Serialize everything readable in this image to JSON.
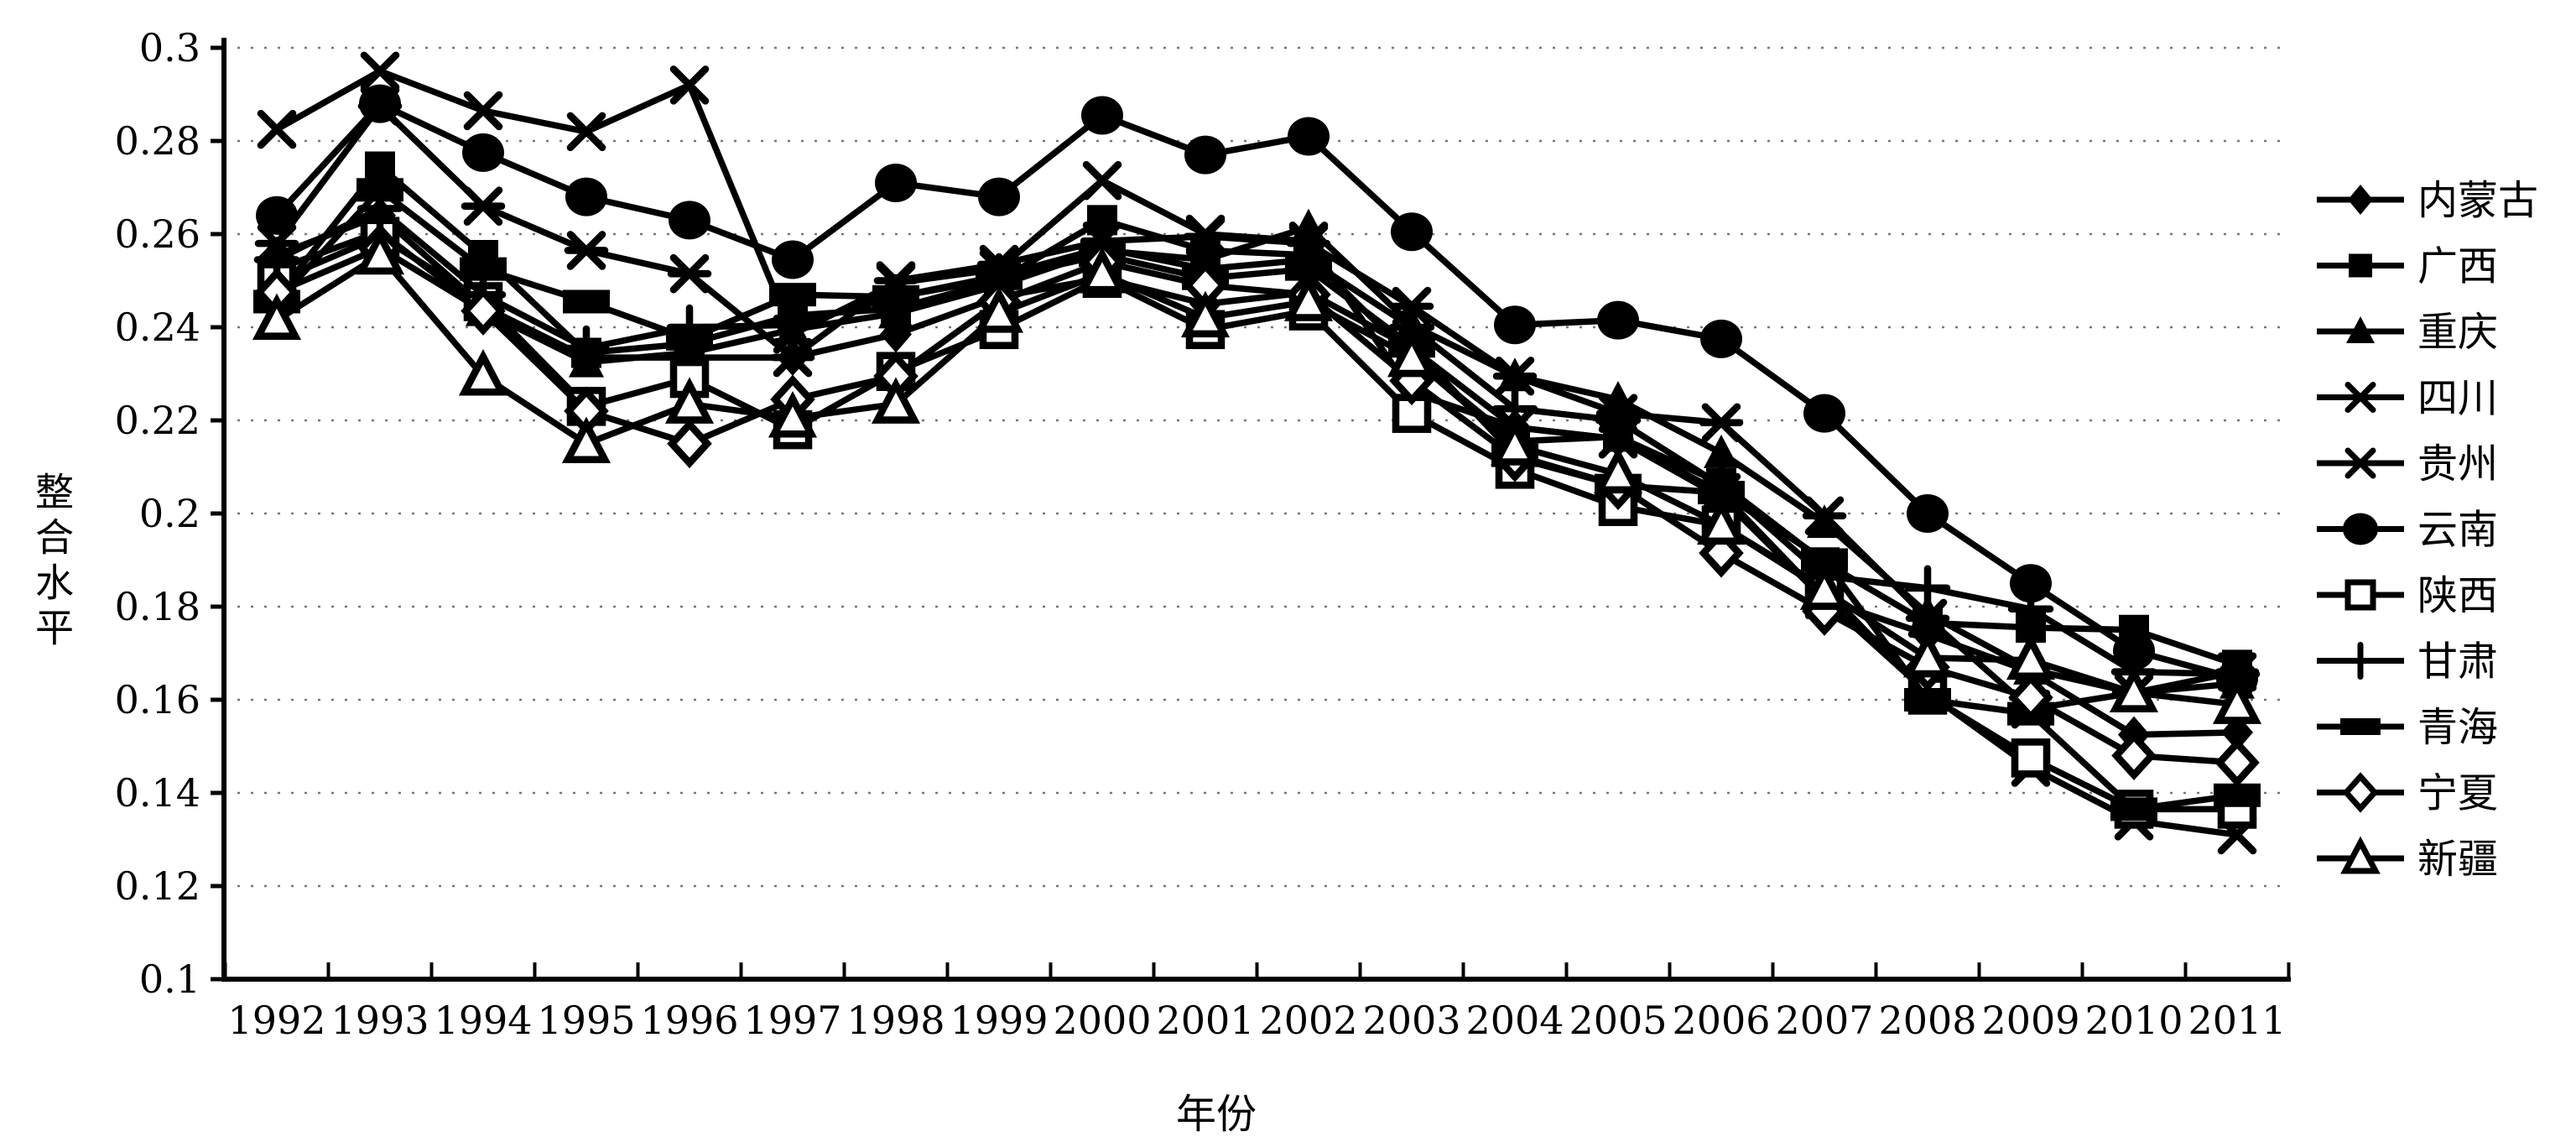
{
  "chart_data": {
    "type": "line",
    "title": "",
    "xlabel": "年份",
    "ylabel": "整合水平",
    "x_categories": [
      "1992",
      "1993",
      "1994",
      "1995",
      "1996",
      "1997",
      "1998",
      "1999",
      "2000",
      "2001",
      "2002",
      "2003",
      "2004",
      "2005",
      "2006",
      "2007",
      "2008",
      "2009",
      "2010",
      "2011"
    ],
    "y_ticks": [
      "0.1",
      "0.12",
      "0.14",
      "0.16",
      "0.18",
      "0.2",
      "0.22",
      "0.24",
      "0.26",
      "0.28",
      "0.3"
    ],
    "ylim": [
      0.1,
      0.3
    ],
    "grid": "horizontal-dotted",
    "legend_position": "right",
    "line_color": "#000000",
    "background_color": "#ffffff",
    "series": [
      {
        "name": "内蒙古",
        "marker": "diamond",
        "values": [
          0.2555,
          0.264,
          0.2445,
          0.2335,
          0.2335,
          0.2335,
          0.2385,
          0.2465,
          0.2505,
          0.245,
          0.2475,
          0.2355,
          0.2185,
          0.216,
          0.2035,
          0.1815,
          0.174,
          0.166,
          0.1525,
          0.153
        ]
      },
      {
        "name": "广西",
        "marker": "square",
        "values": [
          0.2465,
          0.2745,
          0.2555,
          0.2345,
          0.2365,
          0.2425,
          0.244,
          0.25,
          0.263,
          0.2565,
          0.2555,
          0.2335,
          0.2155,
          0.2165,
          0.2065,
          0.1895,
          0.1765,
          0.1755,
          0.175,
          0.1675
        ]
      },
      {
        "name": "重庆",
        "marker": "triangle",
        "values": [
          0.2525,
          0.2605,
          0.2435,
          0.2325,
          0.2345,
          0.2395,
          0.243,
          0.249,
          0.2565,
          0.2545,
          0.2615,
          0.2405,
          0.2295,
          0.2245,
          0.213,
          0.198,
          0.1785,
          0.1665,
          0.1615,
          0.1635
        ]
      },
      {
        "name": "四川",
        "marker": "x",
        "values": [
          0.2825,
          0.295,
          0.2865,
          0.282,
          0.292,
          0.2385,
          0.2495,
          0.2525,
          0.2715,
          0.26,
          0.2585,
          0.226,
          0.2185,
          0.216,
          0.2045,
          0.1815,
          0.1615,
          0.1455,
          0.134,
          0.131
        ]
      },
      {
        "name": "贵州",
        "marker": "asterisk",
        "values": [
          0.258,
          0.2875,
          0.266,
          0.2565,
          0.2515,
          0.2335,
          0.25,
          0.2535,
          0.2585,
          0.2595,
          0.258,
          0.2445,
          0.2295,
          0.2215,
          0.2195,
          0.1995,
          0.1775,
          0.158,
          0.1615,
          0.166
        ]
      },
      {
        "name": "云南",
        "marker": "circle",
        "values": [
          0.264,
          0.288,
          0.2775,
          0.268,
          0.263,
          0.2545,
          0.271,
          0.268,
          0.2855,
          0.277,
          0.281,
          0.2605,
          0.2405,
          0.2415,
          0.2375,
          0.2215,
          0.2,
          0.185,
          0.1705,
          0.1645
        ]
      },
      {
        "name": "陕西",
        "marker": "square-open",
        "values": [
          0.25,
          0.2595,
          0.2455,
          0.223,
          0.229,
          0.218,
          0.2305,
          0.2395,
          0.2505,
          0.2395,
          0.2435,
          0.2215,
          0.2095,
          0.2015,
          0.1975,
          0.184,
          0.161,
          0.1475,
          0.1365,
          0.1365
        ]
      },
      {
        "name": "甘肃",
        "marker": "plus",
        "values": [
          0.2545,
          0.2655,
          0.247,
          0.2355,
          0.24,
          0.2405,
          0.2465,
          0.251,
          0.257,
          0.2525,
          0.2545,
          0.24,
          0.2225,
          0.22,
          0.206,
          0.1865,
          0.184,
          0.1795,
          0.166,
          0.1655
        ]
      },
      {
        "name": "青海",
        "marker": "rect",
        "values": [
          0.2455,
          0.2695,
          0.2525,
          0.2455,
          0.2375,
          0.247,
          0.2465,
          0.2505,
          0.2555,
          0.2505,
          0.2525,
          0.236,
          0.2125,
          0.206,
          0.2045,
          0.19,
          0.16,
          0.157,
          0.1365,
          0.1395
        ]
      },
      {
        "name": "宁夏",
        "marker": "diamond-open",
        "values": [
          0.2475,
          0.257,
          0.2435,
          0.222,
          0.215,
          0.2245,
          0.2295,
          0.2455,
          0.254,
          0.249,
          0.247,
          0.2285,
          0.212,
          0.206,
          0.1915,
          0.179,
          0.167,
          0.1605,
          0.148,
          0.1465
        ]
      },
      {
        "name": "新疆",
        "marker": "triangle-open",
        "values": [
          0.2415,
          0.2555,
          0.2295,
          0.215,
          0.2235,
          0.2205,
          0.2235,
          0.243,
          0.2515,
          0.242,
          0.2455,
          0.2335,
          0.2145,
          0.2085,
          0.1975,
          0.1835,
          0.169,
          0.1685,
          0.1615,
          0.159
        ]
      }
    ]
  }
}
